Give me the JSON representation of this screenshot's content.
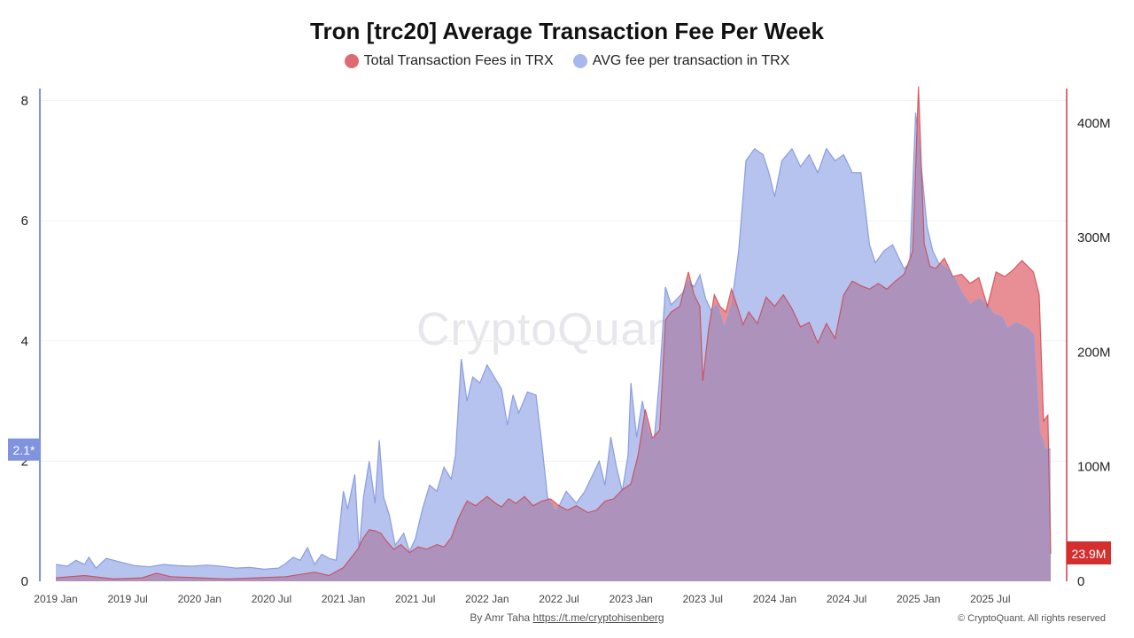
{
  "title": "Tron [trc20] Average Transaction Fee Per Week",
  "legend": {
    "total_fees": "Total Transaction Fees in TRX",
    "avg_fee": "AVG fee per transaction in TRX"
  },
  "watermark": "CryptoQuant",
  "footer": {
    "by": "By Amr Taha",
    "link": "https://t.me/cryptohisenberg"
  },
  "copyright": "© CryptoQuant. All rights reserved",
  "colors": {
    "total_fill": "#e06a72",
    "total_stroke": "#d0414b",
    "avg_fill": "#a9b8ec",
    "avg_stroke": "#8a9de0",
    "overlap": "#ad93bb",
    "left_badge": "#7f93de",
    "right_badge": "#d32f2f"
  },
  "chart_data": {
    "type": "area",
    "x_ticks": [
      "2019 Jan",
      "2019 Jul",
      "2020 Jan",
      "2020 Jul",
      "2021 Jan",
      "2021 Jul",
      "2022 Jan",
      "2022 Jul",
      "2023 Jan",
      "2023 Jul",
      "2024 Jan",
      "2024 Jul",
      "2025 Jan",
      "2025 Jul"
    ],
    "y_left": {
      "range": [
        0,
        8.2
      ],
      "ticks": [
        0,
        2,
        4,
        6,
        8
      ],
      "tick_labels": [
        "0",
        "2",
        "4",
        "6",
        "8"
      ]
    },
    "y_right": {
      "range": [
        0,
        430
      ],
      "unit": "M",
      "ticks": [
        0,
        100,
        200,
        300,
        400
      ],
      "tick_labels": [
        "0",
        "100M",
        "200M",
        "300M",
        "400M"
      ]
    },
    "x_range": [
      2019.0,
      2025.92
    ],
    "current_values": {
      "left": "2.1*",
      "right": "23.9M"
    },
    "series": [
      {
        "name": "AVG fee per transaction in TRX",
        "axis": "left",
        "points": [
          [
            2019.0,
            0.28
          ],
          [
            2019.08,
            0.25
          ],
          [
            2019.14,
            0.35
          ],
          [
            2019.2,
            0.28
          ],
          [
            2019.23,
            0.4
          ],
          [
            2019.28,
            0.22
          ],
          [
            2019.35,
            0.38
          ],
          [
            2019.45,
            0.32
          ],
          [
            2019.55,
            0.26
          ],
          [
            2019.65,
            0.24
          ],
          [
            2019.75,
            0.28
          ],
          [
            2019.85,
            0.26
          ],
          [
            2019.95,
            0.25
          ],
          [
            2020.05,
            0.27
          ],
          [
            2020.15,
            0.25
          ],
          [
            2020.25,
            0.22
          ],
          [
            2020.35,
            0.23
          ],
          [
            2020.45,
            0.2
          ],
          [
            2020.55,
            0.22
          ],
          [
            2020.6,
            0.3
          ],
          [
            2020.65,
            0.4
          ],
          [
            2020.7,
            0.35
          ],
          [
            2020.75,
            0.56
          ],
          [
            2020.8,
            0.28
          ],
          [
            2020.85,
            0.45
          ],
          [
            2020.9,
            0.38
          ],
          [
            2020.95,
            0.35
          ],
          [
            2021.0,
            1.5
          ],
          [
            2021.03,
            1.2
          ],
          [
            2021.08,
            1.78
          ],
          [
            2021.11,
            0.5
          ],
          [
            2021.14,
            1.4
          ],
          [
            2021.18,
            2.0
          ],
          [
            2021.22,
            1.3
          ],
          [
            2021.25,
            2.35
          ],
          [
            2021.28,
            1.4
          ],
          [
            2021.32,
            1.1
          ],
          [
            2021.36,
            0.6
          ],
          [
            2021.42,
            0.8
          ],
          [
            2021.46,
            0.5
          ],
          [
            2021.5,
            0.7
          ],
          [
            2021.55,
            1.2
          ],
          [
            2021.6,
            1.6
          ],
          [
            2021.65,
            1.5
          ],
          [
            2021.7,
            1.9
          ],
          [
            2021.75,
            1.7
          ],
          [
            2021.78,
            2.1
          ],
          [
            2021.82,
            3.7
          ],
          [
            2021.86,
            3.0
          ],
          [
            2021.9,
            3.4
          ],
          [
            2021.95,
            3.3
          ],
          [
            2022.0,
            3.6
          ],
          [
            2022.05,
            3.4
          ],
          [
            2022.1,
            3.2
          ],
          [
            2022.14,
            2.6
          ],
          [
            2022.18,
            3.1
          ],
          [
            2022.22,
            2.8
          ],
          [
            2022.28,
            3.15
          ],
          [
            2022.34,
            3.1
          ],
          [
            2022.38,
            2.3
          ],
          [
            2022.42,
            1.4
          ],
          [
            2022.48,
            1.15
          ],
          [
            2022.55,
            1.5
          ],
          [
            2022.62,
            1.3
          ],
          [
            2022.68,
            1.5
          ],
          [
            2022.74,
            1.8
          ],
          [
            2022.78,
            2.0
          ],
          [
            2022.82,
            1.6
          ],
          [
            2022.86,
            2.4
          ],
          [
            2022.9,
            1.9
          ],
          [
            2022.94,
            1.5
          ],
          [
            2022.98,
            2.1
          ],
          [
            2023.0,
            3.3
          ],
          [
            2023.04,
            2.4
          ],
          [
            2023.08,
            3.0
          ],
          [
            2023.12,
            2.5
          ],
          [
            2023.16,
            2.3
          ],
          [
            2023.2,
            3.4
          ],
          [
            2023.24,
            4.9
          ],
          [
            2023.28,
            4.6
          ],
          [
            2023.32,
            4.7
          ],
          [
            2023.36,
            4.8
          ],
          [
            2023.4,
            5.0
          ],
          [
            2023.44,
            4.9
          ],
          [
            2023.48,
            5.1
          ],
          [
            2023.52,
            4.7
          ],
          [
            2023.56,
            4.5
          ],
          [
            2023.6,
            4.6
          ],
          [
            2023.65,
            4.2
          ],
          [
            2023.7,
            4.6
          ],
          [
            2023.75,
            5.5
          ],
          [
            2023.8,
            7.0
          ],
          [
            2023.86,
            7.2
          ],
          [
            2023.92,
            7.1
          ],
          [
            2023.96,
            6.8
          ],
          [
            2024.0,
            6.4
          ],
          [
            2024.05,
            7.0
          ],
          [
            2024.12,
            7.2
          ],
          [
            2024.18,
            6.9
          ],
          [
            2024.24,
            7.1
          ],
          [
            2024.3,
            6.8
          ],
          [
            2024.36,
            7.2
          ],
          [
            2024.42,
            7.0
          ],
          [
            2024.48,
            7.1
          ],
          [
            2024.54,
            6.8
          ],
          [
            2024.6,
            6.8
          ],
          [
            2024.66,
            5.6
          ],
          [
            2024.7,
            5.3
          ],
          [
            2024.76,
            5.5
          ],
          [
            2024.82,
            5.6
          ],
          [
            2024.86,
            5.4
          ],
          [
            2024.9,
            5.2
          ],
          [
            2024.94,
            5.3
          ],
          [
            2024.98,
            7.8
          ],
          [
            2025.02,
            6.9
          ],
          [
            2025.06,
            5.9
          ],
          [
            2025.1,
            5.5
          ],
          [
            2025.14,
            5.3
          ],
          [
            2025.2,
            5.2
          ],
          [
            2025.26,
            5.0
          ],
          [
            2025.3,
            4.8
          ],
          [
            2025.36,
            4.6
          ],
          [
            2025.42,
            4.7
          ],
          [
            2025.48,
            4.6
          ],
          [
            2025.52,
            4.45
          ],
          [
            2025.58,
            4.4
          ],
          [
            2025.62,
            4.2
          ],
          [
            2025.68,
            4.3
          ],
          [
            2025.72,
            4.25
          ],
          [
            2025.76,
            4.2
          ],
          [
            2025.8,
            4.1
          ],
          [
            2025.84,
            2.5
          ],
          [
            2025.88,
            2.2
          ],
          [
            2025.92,
            2.2
          ]
        ]
      },
      {
        "name": "Total Transaction Fees in TRX",
        "axis": "right",
        "points": [
          [
            2019.0,
            3
          ],
          [
            2019.2,
            5
          ],
          [
            2019.4,
            2
          ],
          [
            2019.6,
            3
          ],
          [
            2019.7,
            7
          ],
          [
            2019.8,
            4
          ],
          [
            2020.0,
            3
          ],
          [
            2020.2,
            2
          ],
          [
            2020.4,
            3
          ],
          [
            2020.6,
            4
          ],
          [
            2020.8,
            8
          ],
          [
            2020.9,
            5
          ],
          [
            2021.0,
            12
          ],
          [
            2021.05,
            20
          ],
          [
            2021.1,
            28
          ],
          [
            2021.14,
            38
          ],
          [
            2021.18,
            45
          ],
          [
            2021.22,
            44
          ],
          [
            2021.26,
            42
          ],
          [
            2021.3,
            35
          ],
          [
            2021.35,
            28
          ],
          [
            2021.4,
            32
          ],
          [
            2021.46,
            25
          ],
          [
            2021.52,
            30
          ],
          [
            2021.58,
            28
          ],
          [
            2021.65,
            32
          ],
          [
            2021.7,
            30
          ],
          [
            2021.75,
            38
          ],
          [
            2021.8,
            55
          ],
          [
            2021.86,
            70
          ],
          [
            2021.92,
            66
          ],
          [
            2022.0,
            74
          ],
          [
            2022.06,
            68
          ],
          [
            2022.1,
            65
          ],
          [
            2022.15,
            72
          ],
          [
            2022.2,
            68
          ],
          [
            2022.26,
            74
          ],
          [
            2022.32,
            66
          ],
          [
            2022.38,
            70
          ],
          [
            2022.44,
            72
          ],
          [
            2022.5,
            66
          ],
          [
            2022.56,
            62
          ],
          [
            2022.62,
            66
          ],
          [
            2022.7,
            60
          ],
          [
            2022.76,
            62
          ],
          [
            2022.82,
            70
          ],
          [
            2022.88,
            72
          ],
          [
            2022.94,
            80
          ],
          [
            2023.0,
            85
          ],
          [
            2023.05,
            110
          ],
          [
            2023.1,
            150
          ],
          [
            2023.15,
            125
          ],
          [
            2023.2,
            132
          ],
          [
            2023.24,
            228
          ],
          [
            2023.28,
            235
          ],
          [
            2023.34,
            240
          ],
          [
            2023.4,
            270
          ],
          [
            2023.44,
            250
          ],
          [
            2023.48,
            240
          ],
          [
            2023.5,
            175
          ],
          [
            2023.54,
            220
          ],
          [
            2023.58,
            250
          ],
          [
            2023.62,
            240
          ],
          [
            2023.66,
            235
          ],
          [
            2023.7,
            255
          ],
          [
            2023.74,
            240
          ],
          [
            2023.78,
            224
          ],
          [
            2023.82,
            235
          ],
          [
            2023.88,
            225
          ],
          [
            2023.94,
            248
          ],
          [
            2024.0,
            240
          ],
          [
            2024.06,
            250
          ],
          [
            2024.12,
            238
          ],
          [
            2024.18,
            222
          ],
          [
            2024.24,
            226
          ],
          [
            2024.3,
            208
          ],
          [
            2024.36,
            225
          ],
          [
            2024.42,
            212
          ],
          [
            2024.48,
            250
          ],
          [
            2024.54,
            262
          ],
          [
            2024.6,
            258
          ],
          [
            2024.66,
            255
          ],
          [
            2024.72,
            260
          ],
          [
            2024.78,
            255
          ],
          [
            2024.84,
            262
          ],
          [
            2024.9,
            268
          ],
          [
            2024.96,
            288
          ],
          [
            2025.0,
            432
          ],
          [
            2025.04,
            295
          ],
          [
            2025.08,
            275
          ],
          [
            2025.12,
            273
          ],
          [
            2025.18,
            282
          ],
          [
            2025.24,
            266
          ],
          [
            2025.3,
            268
          ],
          [
            2025.36,
            260
          ],
          [
            2025.42,
            265
          ],
          [
            2025.48,
            240
          ],
          [
            2025.54,
            270
          ],
          [
            2025.6,
            266
          ],
          [
            2025.66,
            272
          ],
          [
            2025.72,
            280
          ],
          [
            2025.76,
            275
          ],
          [
            2025.8,
            270
          ],
          [
            2025.84,
            250
          ],
          [
            2025.87,
            140
          ],
          [
            2025.9,
            145
          ],
          [
            2025.92,
            24
          ]
        ]
      }
    ]
  }
}
